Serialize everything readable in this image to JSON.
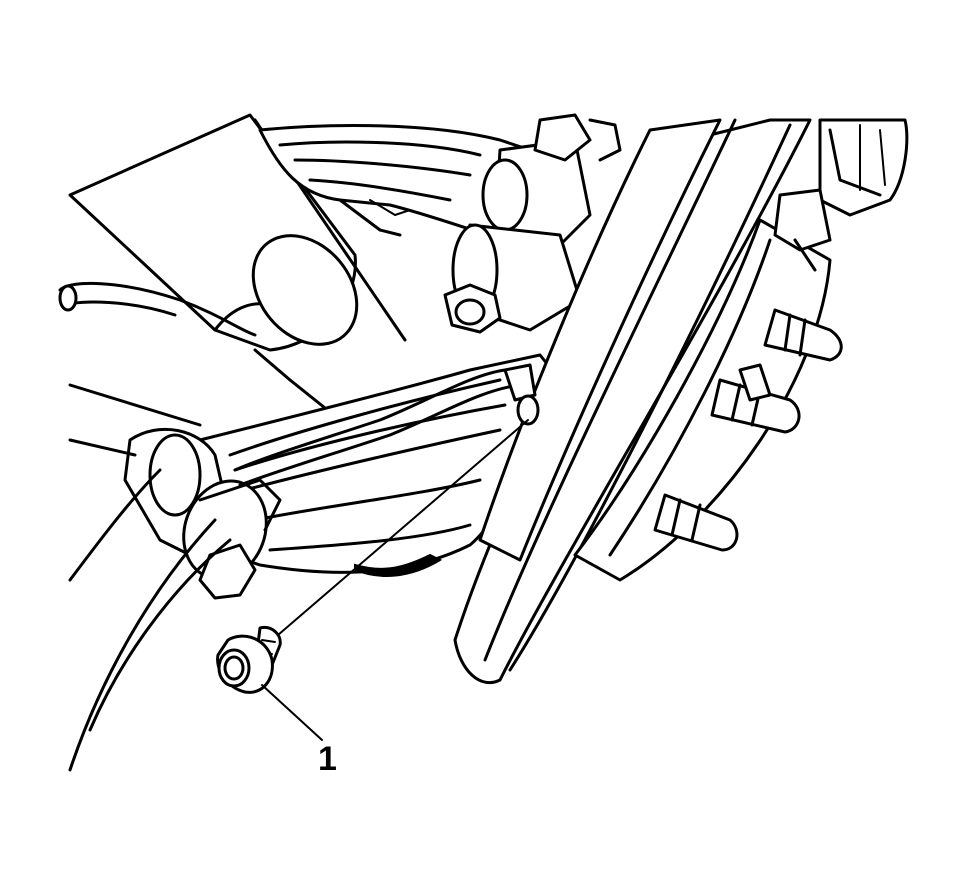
{
  "callouts": [
    {
      "number": "1",
      "part": "bolt"
    }
  ],
  "colors": {
    "line": "#000000",
    "background": "#ffffff"
  }
}
